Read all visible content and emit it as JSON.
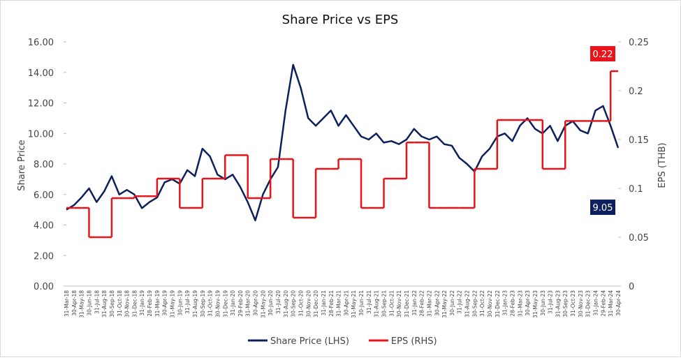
{
  "chart_data": {
    "type": "line",
    "title": "Share Price vs EPS",
    "y_label": "Share Price",
    "y2_label": "EPS (THB)",
    "categories": [
      "31-Mar-18",
      "30-Apr-18",
      "31-May-18",
      "30-Jun-18",
      "31-Jul-18",
      "31-Aug-18",
      "30-Sep-18",
      "31-Oct-18",
      "30-Nov-18",
      "31-Dec-18",
      "31-Jan-19",
      "28-Feb-19",
      "31-Mar-19",
      "30-Apr-19",
      "31-May-19",
      "30-Jun-19",
      "31-Jul-19",
      "31-Aug-19",
      "30-Sep-19",
      "31-Oct-19",
      "30-Nov-19",
      "31-Dec-19",
      "31-Jan-20",
      "29-Feb-20",
      "31-Mar-20",
      "30-Apr-20",
      "31-May-20",
      "30-Jun-20",
      "31-Jul-20",
      "31-Aug-20",
      "30-Sep-20",
      "31-Oct-20",
      "30-Nov-20",
      "31-Dec-20",
      "31-Jan-21",
      "28-Feb-21",
      "31-Mar-21",
      "30-Apr-21",
      "31-May-21",
      "30-Jun-21",
      "31-Jul-21",
      "31-Aug-21",
      "30-Sep-21",
      "31-Oct-21",
      "30-Nov-21",
      "31-Dec-21",
      "31-Jan-22",
      "28-Feb-22",
      "31-Mar-22",
      "30-Apr-22",
      "31-May-22",
      "30-Jun-22",
      "31-Jul-22",
      "31-Aug-22",
      "30-Sep-22",
      "31-Oct-22",
      "30-Nov-22",
      "31-Dec-22",
      "31-Jan-23",
      "28-Feb-23",
      "31-Mar-23",
      "30-Apr-23",
      "31-May-23",
      "30-Jun-23",
      "31-Jul-23",
      "31-Aug-23",
      "30-Sep-23",
      "31-Oct-23",
      "30-Nov-23",
      "31-Dec-23",
      "31-Jan-24",
      "29-Feb-24",
      "31-Mar-24",
      "30-Apr-24"
    ],
    "series": [
      {
        "name": "Share Price (LHS)",
        "color": "#0d1f5c",
        "axis": "y",
        "values": [
          5.0,
          5.3,
          5.8,
          6.4,
          5.5,
          6.2,
          7.2,
          6.0,
          6.3,
          6.0,
          5.1,
          5.5,
          5.8,
          6.8,
          7.0,
          6.7,
          7.6,
          7.2,
          9.0,
          8.5,
          7.3,
          7.0,
          7.3,
          6.5,
          5.5,
          4.3,
          6.0,
          7.0,
          7.8,
          11.5,
          14.5,
          13.0,
          11.0,
          10.5,
          11.0,
          11.5,
          10.5,
          11.2,
          10.5,
          9.8,
          9.6,
          10.0,
          9.4,
          9.5,
          9.3,
          9.6,
          10.3,
          9.8,
          9.6,
          9.8,
          9.3,
          9.2,
          8.4,
          8.0,
          7.5,
          8.5,
          9.0,
          9.8,
          10.0,
          9.5,
          10.5,
          11.0,
          10.3,
          10.0,
          10.5,
          9.5,
          10.5,
          10.8,
          10.2,
          10.0,
          11.5,
          11.8,
          10.5,
          9.05
        ]
      },
      {
        "name": "EPS (RHS)",
        "color": "#e8141b",
        "axis": "y2",
        "values": [
          0.08,
          0.08,
          0.08,
          0.05,
          0.05,
          0.05,
          0.09,
          0.09,
          0.09,
          0.092,
          0.092,
          0.092,
          0.11,
          0.11,
          0.11,
          0.08,
          0.08,
          0.08,
          0.11,
          0.11,
          0.11,
          0.134,
          0.134,
          0.134,
          0.09,
          0.09,
          0.09,
          0.13,
          0.13,
          0.13,
          0.07,
          0.07,
          0.07,
          0.12,
          0.12,
          0.12,
          0.13,
          0.13,
          0.13,
          0.08,
          0.08,
          0.08,
          0.11,
          0.11,
          0.11,
          0.147,
          0.147,
          0.147,
          0.08,
          0.08,
          0.08,
          0.08,
          0.08,
          0.08,
          0.12,
          0.12,
          0.12,
          0.17,
          0.17,
          0.17,
          0.17,
          0.17,
          0.17,
          0.12,
          0.12,
          0.12,
          0.169,
          0.169,
          0.169,
          0.169,
          0.169,
          0.169,
          0.22,
          0.22
        ]
      }
    ],
    "step_series": [
      1
    ],
    "ylim": [
      0,
      16
    ],
    "yticks": [
      {
        "value": 0,
        "label": "0.00"
      },
      {
        "value": 2,
        "label": "2.00"
      },
      {
        "value": 4,
        "label": "4.00"
      },
      {
        "value": 6,
        "label": "6.00"
      },
      {
        "value": 8,
        "label": "8.00"
      },
      {
        "value": 10,
        "label": "10.00"
      },
      {
        "value": 12,
        "label": "12.00"
      },
      {
        "value": 14,
        "label": "14.00"
      },
      {
        "value": 16,
        "label": "16.00"
      }
    ],
    "y2lim": [
      0,
      0.25
    ],
    "y2ticks": [
      0,
      0.05,
      0.1,
      0.15,
      0.2,
      0.25
    ],
    "annotations": [
      {
        "text": "0.22",
        "series": 1,
        "color": "#e8141b"
      },
      {
        "text": "9.05",
        "series": 0,
        "color": "#0d1f5c"
      }
    ],
    "legend": "bottom"
  }
}
